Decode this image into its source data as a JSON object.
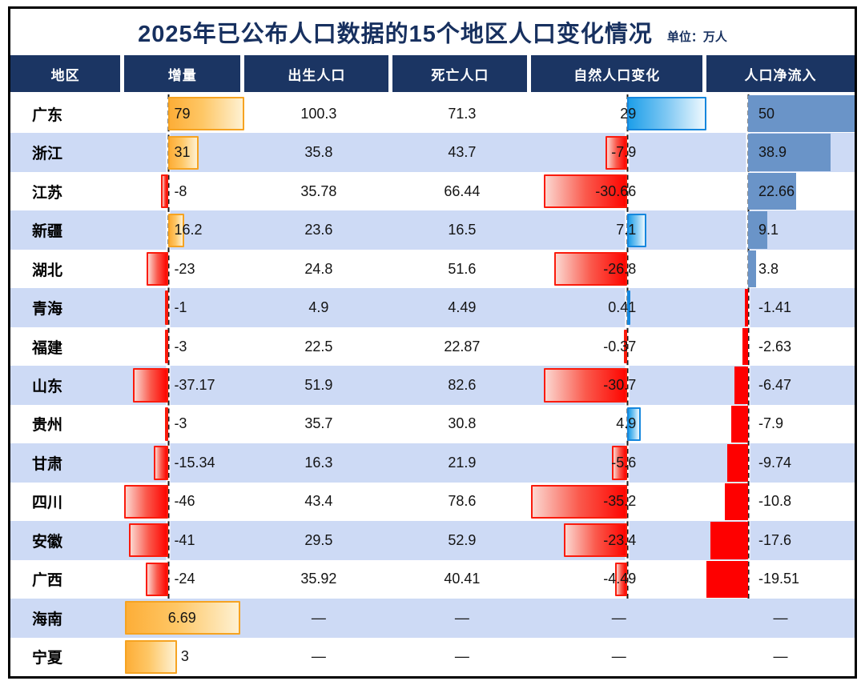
{
  "title": "2025年已公布人口数据的15个地区人口变化情况",
  "unit_label": "单位：万人",
  "columns": [
    "地区",
    "增量",
    "出生人口",
    "死亡人口",
    "自然人口变化",
    "人口净流入"
  ],
  "placeholder": "—",
  "colors": {
    "header_bg": "#1B3563",
    "title_text": "#17305F",
    "row_alt_bg": "#CDDAF5",
    "delta_positive_bar": "#FDB043",
    "delta_positive_border": "#F6A321",
    "negative_bar_red": "#FE0500",
    "natural_positive_bar": "#1E9FE9",
    "natural_positive_border": "#1687DD",
    "net_positive_bar": "#6A94C8",
    "net_negative_bar": "#FE0000"
  },
  "chart_data": {
    "type": "table",
    "title": "2025年已公布人口数据的15个地区人口变化情况",
    "unit": "万人",
    "columns": [
      "地区",
      "增量",
      "出生人口",
      "死亡人口",
      "自然人口变化",
      "人口净流入"
    ],
    "rows": [
      {
        "region": "广东",
        "delta": 79,
        "births": 100.3,
        "deaths": 71.3,
        "natural": 29,
        "net": 50
      },
      {
        "region": "浙江",
        "delta": 31,
        "births": 35.8,
        "deaths": 43.7,
        "natural": -7.9,
        "net": 38.9
      },
      {
        "region": "江苏",
        "delta": -8,
        "births": 35.78,
        "deaths": 66.44,
        "natural": -30.66,
        "net": 22.66
      },
      {
        "region": "新疆",
        "delta": 16.2,
        "births": 23.6,
        "deaths": 16.5,
        "natural": 7.1,
        "net": 9.1
      },
      {
        "region": "湖北",
        "delta": -23,
        "births": 24.8,
        "deaths": 51.6,
        "natural": -26.8,
        "net": 3.8
      },
      {
        "region": "青海",
        "delta": -1,
        "births": 4.9,
        "deaths": 4.49,
        "natural": 0.41,
        "net": -1.41
      },
      {
        "region": "福建",
        "delta": -3,
        "births": 22.5,
        "deaths": 22.87,
        "natural": -0.37,
        "net": -2.63
      },
      {
        "region": "山东",
        "delta": -37.17,
        "births": 51.9,
        "deaths": 82.6,
        "natural": -30.7,
        "net": -6.47
      },
      {
        "region": "贵州",
        "delta": -3,
        "births": 35.7,
        "deaths": 30.8,
        "natural": 4.9,
        "net": -7.9
      },
      {
        "region": "甘肃",
        "delta": -15.34,
        "births": 16.3,
        "deaths": 21.9,
        "natural": -5.6,
        "net": -9.74
      },
      {
        "region": "四川",
        "delta": -46,
        "births": 43.4,
        "deaths": 78.6,
        "natural": -35.2,
        "net": -10.8
      },
      {
        "region": "安徽",
        "delta": -41,
        "births": 29.5,
        "deaths": 52.9,
        "natural": -23.4,
        "net": -17.6
      },
      {
        "region": "广西",
        "delta": -24,
        "births": 35.92,
        "deaths": 40.41,
        "natural": -4.49,
        "net": -19.51
      },
      {
        "region": "海南",
        "delta": 6.69,
        "births": null,
        "deaths": null,
        "natural": null,
        "net": null,
        "delta_bar_anchor": "left"
      },
      {
        "region": "宁夏",
        "delta": 3,
        "births": null,
        "deaths": null,
        "natural": null,
        "net": null,
        "delta_bar_anchor": "left"
      }
    ],
    "bar_columns": {
      "delta": {
        "max_pos": 79,
        "max_neg": 46,
        "left_anchor_max": 6.69
      },
      "natural": {
        "max_pos": 29,
        "max_neg": 35.2
      },
      "net": {
        "max_pos": 50,
        "max_neg": 19.51
      }
    },
    "layout": {
      "striped": true,
      "baseline_style": "dashed",
      "baseline_rows": 13,
      "legend": "none",
      "grid": "off"
    }
  }
}
